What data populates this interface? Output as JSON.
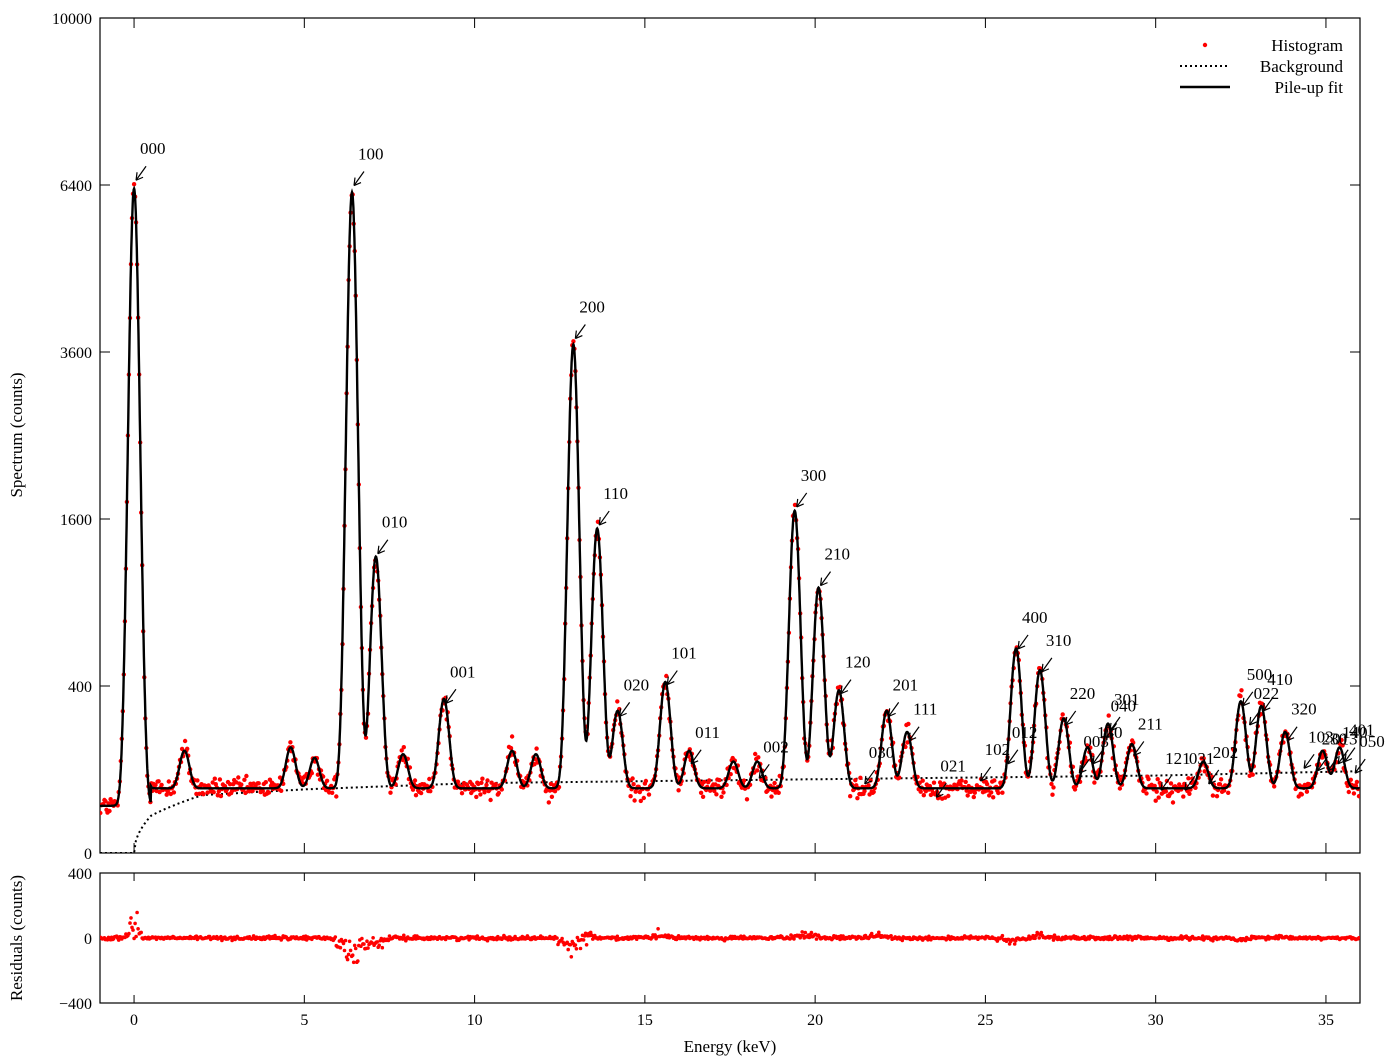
{
  "chart_data": [
    {
      "type": "scatter",
      "ylabel": "Spectrum (counts)",
      "xlim": [
        -1,
        36
      ],
      "y_scale": "sqrt",
      "ylim": [
        0,
        10000
      ],
      "y_ticks": [
        0,
        400,
        1600,
        3600,
        6400,
        10000
      ],
      "y_tick_labels": [
        "0",
        "400",
        "1600",
        "3600",
        "6400",
        "10000"
      ],
      "grid": false,
      "legend_position": "top-right",
      "legend": [
        {
          "label": "Histogram",
          "style": "red dots"
        },
        {
          "label": "Background",
          "style": "dotted line"
        },
        {
          "label": "Pile-up fit",
          "style": "solid line"
        }
      ],
      "colors": {
        "histogram": "#ff0000",
        "fit": "#000000",
        "background": "#000000"
      },
      "series": [
        {
          "name": "Pile-up fit",
          "kind": "peaks",
          "baseline_counts": 80,
          "sigma_keV": 0.13,
          "peaks": [
            {
              "x": 0.0,
              "height": 6300
            },
            {
              "x": 1.48,
              "height": 90
            },
            {
              "x": 4.6,
              "height": 100
            },
            {
              "x": 5.3,
              "height": 70
            },
            {
              "x": 6.4,
              "height": 6200
            },
            {
              "x": 7.1,
              "height": 1200
            },
            {
              "x": 7.9,
              "height": 80
            },
            {
              "x": 9.1,
              "height": 280
            },
            {
              "x": 11.1,
              "height": 90
            },
            {
              "x": 11.8,
              "height": 80
            },
            {
              "x": 12.9,
              "height": 3650
            },
            {
              "x": 13.6,
              "height": 1450
            },
            {
              "x": 14.2,
              "height": 230
            },
            {
              "x": 15.6,
              "height": 360
            },
            {
              "x": 16.3,
              "height": 90
            },
            {
              "x": 17.6,
              "height": 60
            },
            {
              "x": 18.3,
              "height": 60
            },
            {
              "x": 19.4,
              "height": 1620
            },
            {
              "x": 20.1,
              "height": 950
            },
            {
              "x": 20.7,
              "height": 320
            },
            {
              "x": 22.1,
              "height": 230
            },
            {
              "x": 22.7,
              "height": 150
            },
            {
              "x": 25.9,
              "height": 540
            },
            {
              "x": 26.6,
              "height": 420
            },
            {
              "x": 27.3,
              "height": 200
            },
            {
              "x": 28.0,
              "height": 100
            },
            {
              "x": 28.6,
              "height": 180
            },
            {
              "x": 29.3,
              "height": 110
            },
            {
              "x": 31.4,
              "height": 60
            },
            {
              "x": 32.5,
              "height": 270
            },
            {
              "x": 33.1,
              "height": 250
            },
            {
              "x": 33.8,
              "height": 150
            },
            {
              "x": 34.9,
              "height": 90
            },
            {
              "x": 35.4,
              "height": 100
            }
          ]
        },
        {
          "name": "Background",
          "kind": "smooth",
          "points": [
            [
              0,
              0
            ],
            [
              0.5,
              20
            ],
            [
              2,
              48
            ],
            [
              5,
              58
            ],
            [
              10,
              70
            ],
            [
              20,
              78
            ],
            [
              30,
              86
            ],
            [
              36,
              96
            ]
          ]
        },
        {
          "name": "Histogram",
          "kind": "markers",
          "follows": "Pile-up fit"
        }
      ],
      "annotations": [
        {
          "label": "000",
          "x": 0.0,
          "y": 6300
        },
        {
          "label": "100",
          "x": 6.4,
          "y": 6200
        },
        {
          "label": "010",
          "x": 7.1,
          "y": 1200
        },
        {
          "label": "001",
          "x": 9.1,
          "y": 280
        },
        {
          "label": "200",
          "x": 12.9,
          "y": 3650
        },
        {
          "label": "110",
          "x": 13.6,
          "y": 1450
        },
        {
          "label": "020",
          "x": 14.2,
          "y": 230
        },
        {
          "label": "101",
          "x": 15.6,
          "y": 360
        },
        {
          "label": "011",
          "x": 16.3,
          "y": 90
        },
        {
          "label": "002",
          "x": 18.3,
          "y": 60
        },
        {
          "label": "300",
          "x": 19.4,
          "y": 1620
        },
        {
          "label": "210",
          "x": 20.1,
          "y": 950
        },
        {
          "label": "120",
          "x": 20.7,
          "y": 320
        },
        {
          "label": "030",
          "x": 21.4,
          "y": 50
        },
        {
          "label": "201",
          "x": 22.1,
          "y": 230
        },
        {
          "label": "111",
          "x": 22.7,
          "y": 150
        },
        {
          "label": "021",
          "x": 23.5,
          "y": 30
        },
        {
          "label": "102",
          "x": 24.8,
          "y": 55
        },
        {
          "label": "012",
          "x": 25.6,
          "y": 90
        },
        {
          "label": "400",
          "x": 25.9,
          "y": 540
        },
        {
          "label": "310",
          "x": 26.6,
          "y": 420
        },
        {
          "label": "220",
          "x": 27.3,
          "y": 200
        },
        {
          "label": "003",
          "x": 27.7,
          "y": 70
        },
        {
          "label": "130",
          "x": 28.1,
          "y": 90
        },
        {
          "label": "040",
          "x": 28.5,
          "y": 160
        },
        {
          "label": "301",
          "x": 28.6,
          "y": 180
        },
        {
          "label": "211",
          "x": 29.3,
          "y": 110
        },
        {
          "label": "121",
          "x": 30.1,
          "y": 40
        },
        {
          "label": "031",
          "x": 30.8,
          "y": 40
        },
        {
          "label": "202",
          "x": 31.5,
          "y": 50
        },
        {
          "label": "500",
          "x": 32.5,
          "y": 270
        },
        {
          "label": "410",
          "x": 33.1,
          "y": 250
        },
        {
          "label": "022",
          "x": 32.7,
          "y": 200
        },
        {
          "label": "320",
          "x": 33.8,
          "y": 150
        },
        {
          "label": "103",
          "x": 34.3,
          "y": 80
        },
        {
          "label": "230",
          "x": 34.7,
          "y": 75
        },
        {
          "label": "013",
          "x": 35.0,
          "y": 75
        },
        {
          "label": "140",
          "x": 35.3,
          "y": 90
        },
        {
          "label": "401",
          "x": 35.5,
          "y": 95
        },
        {
          "label": "050",
          "x": 35.8,
          "y": 70
        }
      ]
    },
    {
      "type": "scatter",
      "xlabel": "Energy (keV)",
      "ylabel": "Residuals (counts)",
      "xlim": [
        -1,
        36
      ],
      "ylim": [
        -400,
        400
      ],
      "x_ticks": [
        0,
        5,
        10,
        15,
        20,
        25,
        30,
        35
      ],
      "x_tick_labels": [
        "0",
        "5",
        "10",
        "15",
        "20",
        "25",
        "30",
        "35"
      ],
      "y_ticks": [
        -400,
        0,
        400
      ],
      "y_tick_labels": [
        "−400",
        "0",
        "400"
      ],
      "grid": false,
      "series": [
        {
          "name": "Residuals",
          "kind": "markers",
          "color": "#ff0000",
          "features": [
            {
              "x": 0.0,
              "amp": 320,
              "width": 0.15
            },
            {
              "x": 6.4,
              "amp": -380,
              "width": 0.3
            },
            {
              "x": 7.1,
              "amp": -150,
              "width": 0.25
            },
            {
              "x": 12.9,
              "amp": -200,
              "width": 0.3
            },
            {
              "x": 13.3,
              "amp": 150,
              "width": 0.2
            },
            {
              "x": 15.5,
              "amp": 90,
              "width": 0.2
            },
            {
              "x": 19.8,
              "amp": 80,
              "width": 0.35
            },
            {
              "x": 21.8,
              "amp": 50,
              "width": 0.3
            },
            {
              "x": 25.8,
              "amp": -60,
              "width": 0.3
            },
            {
              "x": 26.7,
              "amp": 70,
              "width": 0.3
            },
            {
              "x": 32.5,
              "amp": -40,
              "width": 0.2
            }
          ]
        }
      ]
    }
  ]
}
